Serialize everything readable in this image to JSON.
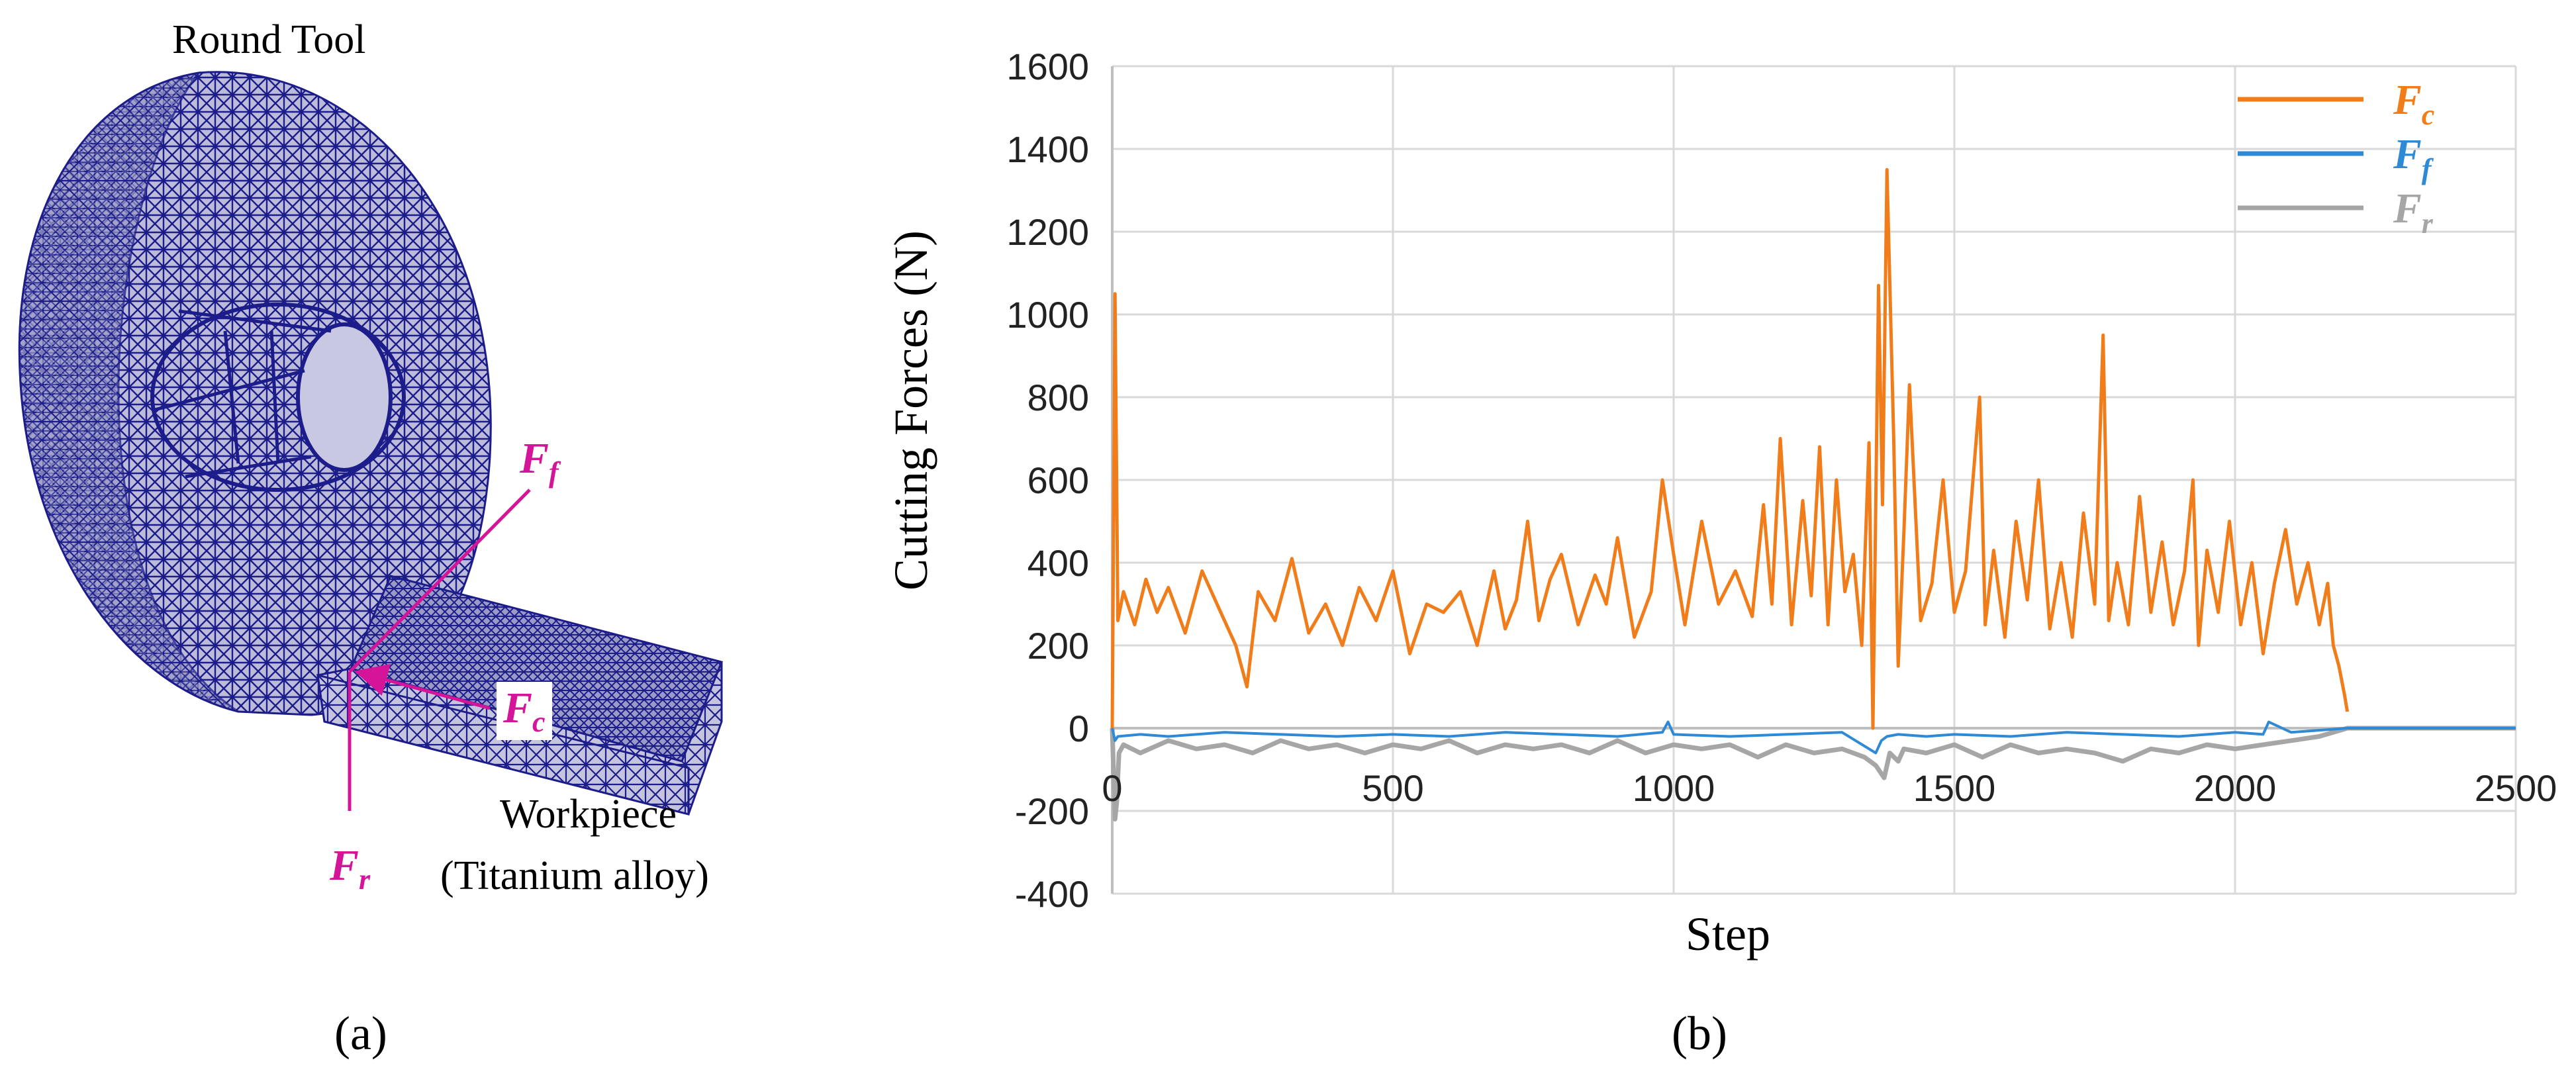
{
  "panel_a": {
    "panel_label": "(a)",
    "tool_label": "Round Tool",
    "workpiece_label": "Workpiece",
    "workpiece_material": "(Titanium alloy)",
    "forces": {
      "Ff": {
        "symbol": "F",
        "subscript": "f"
      },
      "Fc": {
        "symbol": "F",
        "subscript": "c"
      },
      "Fr": {
        "symbol": "F",
        "subscript": "r"
      }
    },
    "colors": {
      "mesh": "#1c1c8a",
      "mesh_fill": "#b8b8d8",
      "force_arrow": "#d4159a"
    }
  },
  "panel_b": {
    "panel_label": "(b)"
  },
  "chart_data": {
    "type": "line",
    "title": "",
    "xlabel": "Step",
    "ylabel": "Cutting Forces (N)",
    "xlim": [
      0,
      2500
    ],
    "ylim": [
      -400,
      1600
    ],
    "x_ticks": [
      "0",
      "500",
      "1000",
      "1500",
      "2000",
      "2500"
    ],
    "y_ticks": [
      "-400",
      "-200",
      "0",
      "200",
      "400",
      "600",
      "800",
      "1000",
      "1200",
      "1400",
      "1600"
    ],
    "grid": true,
    "legend_position": "top-right",
    "series": [
      {
        "name": "Fc",
        "legend_symbol": "F",
        "legend_subscript": "c",
        "color": "#f07d1a",
        "x": [
          0,
          5,
          10,
          20,
          40,
          60,
          80,
          100,
          130,
          160,
          190,
          220,
          240,
          260,
          290,
          320,
          350,
          380,
          410,
          440,
          470,
          500,
          530,
          560,
          590,
          620,
          650,
          680,
          700,
          720,
          740,
          760,
          780,
          800,
          830,
          860,
          880,
          900,
          930,
          960,
          980,
          1000,
          1020,
          1050,
          1080,
          1110,
          1140,
          1160,
          1175,
          1190,
          1210,
          1230,
          1245,
          1260,
          1275,
          1290,
          1305,
          1320,
          1335,
          1348,
          1355,
          1365,
          1372,
          1380,
          1392,
          1400,
          1410,
          1420,
          1440,
          1460,
          1480,
          1500,
          1520,
          1545,
          1555,
          1570,
          1590,
          1610,
          1630,
          1650,
          1670,
          1690,
          1710,
          1730,
          1750,
          1765,
          1775,
          1790,
          1810,
          1830,
          1850,
          1870,
          1890,
          1910,
          1925,
          1935,
          1950,
          1970,
          1990,
          2010,
          2030,
          2050,
          2070,
          2090,
          2110,
          2130,
          2150,
          2165,
          2175,
          2185,
          2195,
          2200
        ],
        "y": [
          0,
          1050,
          260,
          330,
          250,
          360,
          280,
          340,
          230,
          380,
          290,
          200,
          100,
          330,
          260,
          410,
          230,
          300,
          200,
          340,
          260,
          380,
          180,
          300,
          280,
          330,
          200,
          380,
          240,
          310,
          500,
          260,
          360,
          420,
          250,
          370,
          300,
          460,
          220,
          330,
          600,
          420,
          250,
          500,
          300,
          380,
          270,
          540,
          300,
          700,
          250,
          550,
          320,
          680,
          250,
          600,
          330,
          420,
          200,
          690,
          0,
          1070,
          540,
          1350,
          700,
          150,
          470,
          830,
          260,
          350,
          600,
          280,
          380,
          800,
          250,
          430,
          220,
          500,
          310,
          600,
          240,
          400,
          220,
          520,
          300,
          950,
          260,
          400,
          250,
          560,
          280,
          450,
          250,
          380,
          600,
          200,
          430,
          280,
          500,
          250,
          400,
          180,
          350,
          480,
          300,
          400,
          250,
          350,
          200,
          150,
          80,
          40
        ],
        "line_width": 5
      },
      {
        "name": "Ff",
        "legend_symbol": "F",
        "legend_subscript": "f",
        "color": "#2f8ad6",
        "x": [
          0,
          5,
          10,
          50,
          100,
          200,
          300,
          400,
          500,
          600,
          700,
          800,
          900,
          980,
          990,
          1000,
          1100,
          1200,
          1300,
          1360,
          1370,
          1380,
          1400,
          1450,
          1500,
          1600,
          1700,
          1800,
          1900,
          2000,
          2050,
          2060,
          2100,
          2150,
          2200,
          2300,
          2400,
          2500
        ],
        "y": [
          0,
          -30,
          -20,
          -15,
          -20,
          -10,
          -15,
          -20,
          -15,
          -20,
          -10,
          -15,
          -20,
          -10,
          15,
          -15,
          -20,
          -15,
          -10,
          -60,
          -30,
          -20,
          -15,
          -20,
          -15,
          -20,
          -10,
          -15,
          -20,
          -10,
          -15,
          15,
          -10,
          -5,
          0,
          0,
          0,
          0
        ],
        "line_width": 4
      },
      {
        "name": "Fr",
        "legend_symbol": "F",
        "legend_subscript": "r",
        "color": "#a6a6a6",
        "x": [
          0,
          5,
          8,
          12,
          20,
          50,
          100,
          150,
          200,
          250,
          300,
          350,
          400,
          450,
          500,
          550,
          600,
          650,
          700,
          750,
          800,
          850,
          900,
          950,
          1000,
          1050,
          1100,
          1150,
          1200,
          1250,
          1300,
          1340,
          1360,
          1375,
          1385,
          1400,
          1410,
          1450,
          1500,
          1550,
          1600,
          1650,
          1700,
          1750,
          1800,
          1850,
          1900,
          1950,
          2000,
          2050,
          2100,
          2150,
          2200,
          2300,
          2400,
          2500
        ],
        "y": [
          0,
          -220,
          -180,
          -60,
          -40,
          -60,
          -30,
          -50,
          -40,
          -60,
          -30,
          -50,
          -40,
          -60,
          -40,
          -50,
          -30,
          -60,
          -40,
          -50,
          -40,
          -60,
          -30,
          -60,
          -40,
          -50,
          -40,
          -70,
          -40,
          -60,
          -50,
          -70,
          -90,
          -120,
          -60,
          -80,
          -50,
          -60,
          -40,
          -70,
          -40,
          -60,
          -50,
          -60,
          -80,
          -50,
          -60,
          -40,
          -50,
          -40,
          -30,
          -20,
          0,
          0,
          0,
          0
        ],
        "line_width": 7
      }
    ]
  }
}
